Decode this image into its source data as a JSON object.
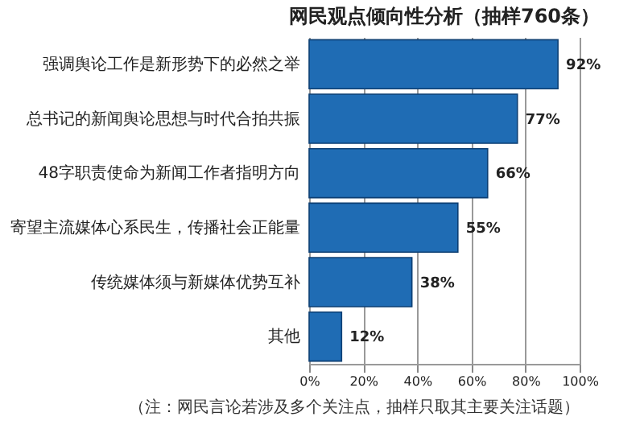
{
  "chart_data": {
    "type": "bar",
    "orientation": "horizontal",
    "title": "网民观点倾向性分析（抽样760条）",
    "categories": [
      "强调舆论工作是新形势下的必然之举",
      "总书记的新闻舆论思想与时代合拍共振",
      "48字职责使命为新闻工作者指明方向",
      "寄望主流媒体心系民生，传播社会正能量",
      "传统媒体须与新媒体优势互补",
      "其他"
    ],
    "values": [
      92,
      77,
      66,
      55,
      38,
      12
    ],
    "value_labels": [
      "92%",
      "77%",
      "66%",
      "55%",
      "38%",
      "12%"
    ],
    "color": "#1f6cb4",
    "xlim": [
      0,
      100
    ],
    "xticks": [
      {
        "value": 0,
        "label": "0%"
      },
      {
        "value": 20,
        "label": "20%"
      },
      {
        "value": 40,
        "label": "40%"
      },
      {
        "value": 60,
        "label": "60%"
      },
      {
        "value": 80,
        "label": "80%"
      },
      {
        "value": 100,
        "label": "100%"
      }
    ],
    "grid": "x",
    "annotations": [
      "（注：网民言论若涉及多个关注点，抽样只取其主要关注话题）"
    ]
  }
}
